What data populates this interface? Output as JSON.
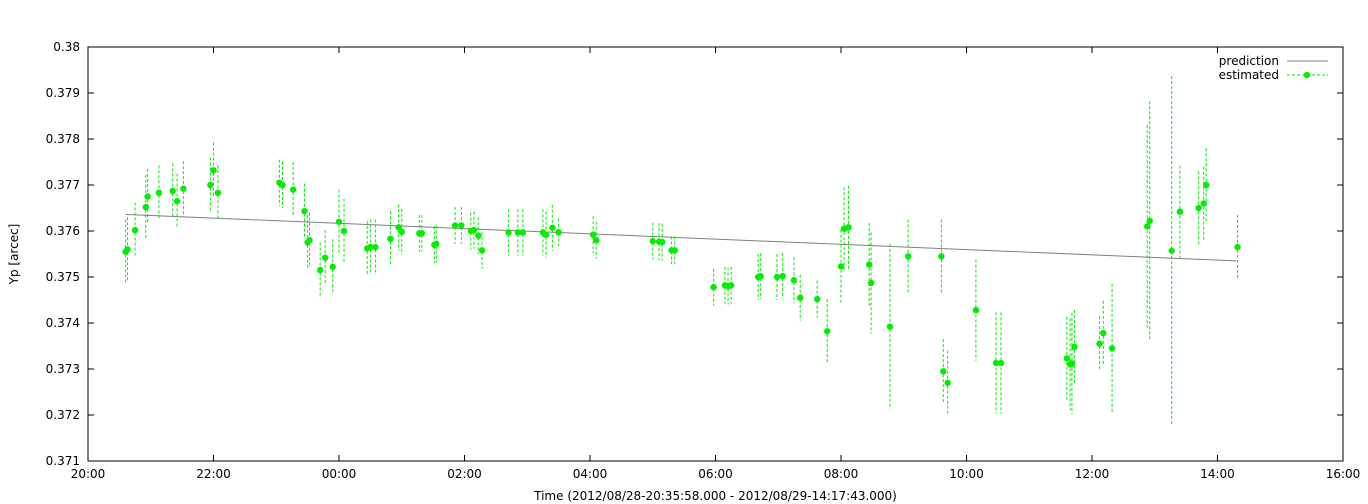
{
  "chart_data": {
    "type": "scatter",
    "title": "",
    "xlabel": "Time (2012/08/28-20:35:58.000 - 2012/08/29-14:17:43.000)",
    "ylabel": "Yp [arcec]",
    "x_unit": "hours",
    "xlim": [
      20,
      40
    ],
    "ylim": [
      0.371,
      0.38
    ],
    "x_ticks": [
      {
        "value": 20,
        "label": "20:00"
      },
      {
        "value": 22,
        "label": "22:00"
      },
      {
        "value": 24,
        "label": "00:00"
      },
      {
        "value": 26,
        "label": "02:00"
      },
      {
        "value": 28,
        "label": "04:00"
      },
      {
        "value": 30,
        "label": "06:00"
      },
      {
        "value": 32,
        "label": "08:00"
      },
      {
        "value": 34,
        "label": "10:00"
      },
      {
        "value": 36,
        "label": "12:00"
      },
      {
        "value": 38,
        "label": "14:00"
      },
      {
        "value": 40,
        "label": "16:00"
      }
    ],
    "y_ticks": [
      {
        "value": 0.371,
        "label": "0.371"
      },
      {
        "value": 0.372,
        "label": "0.372"
      },
      {
        "value": 0.373,
        "label": "0.373"
      },
      {
        "value": 0.374,
        "label": "0.374"
      },
      {
        "value": 0.375,
        "label": "0.375"
      },
      {
        "value": 0.376,
        "label": "0.376"
      },
      {
        "value": 0.377,
        "label": "0.377"
      },
      {
        "value": 0.378,
        "label": "0.378"
      },
      {
        "value": 0.379,
        "label": "0.379"
      },
      {
        "value": 0.38,
        "label": "0.38"
      }
    ],
    "grid": false,
    "legend_position": "top-right",
    "series": [
      {
        "name": "prediction",
        "kind": "line",
        "color": "#7f7f7f",
        "points": [
          [
            20.6,
            0.37636
          ],
          [
            38.3,
            0.37535
          ]
        ]
      },
      {
        "name": "estimated",
        "kind": "points-with-errorbars",
        "color": "#00ee00",
        "errorbar_color": "#00ee00",
        "points": [
          [
            20.6,
            0.37555,
            0.0007
          ],
          [
            20.63,
            0.3756,
            0.0007
          ],
          [
            20.75,
            0.37602,
            0.0006
          ],
          [
            20.92,
            0.37652,
            0.0007
          ],
          [
            20.95,
            0.37675,
            0.0006
          ],
          [
            21.13,
            0.37683,
            0.0006
          ],
          [
            21.35,
            0.37687,
            0.0006
          ],
          [
            21.42,
            0.37665,
            0.0006
          ],
          [
            21.52,
            0.37692,
            0.0006
          ],
          [
            21.95,
            0.377,
            0.0006
          ],
          [
            22.0,
            0.37732,
            0.0006
          ],
          [
            22.07,
            0.37683,
            0.0006
          ],
          [
            23.05,
            0.37705,
            0.0005
          ],
          [
            23.1,
            0.377,
            0.0005
          ],
          [
            23.27,
            0.3769,
            0.0006
          ],
          [
            23.45,
            0.37643,
            0.0006
          ],
          [
            23.5,
            0.37575,
            0.0006
          ],
          [
            23.53,
            0.3758,
            0.0006
          ],
          [
            24.0,
            0.3762,
            0.0007
          ],
          [
            24.08,
            0.376,
            0.0007
          ],
          [
            23.7,
            0.37515,
            0.0006
          ],
          [
            23.78,
            0.37542,
            0.0006
          ],
          [
            23.9,
            0.37522,
            0.0006
          ],
          [
            24.45,
            0.37562,
            0.0006
          ],
          [
            24.5,
            0.37565,
            0.0006
          ],
          [
            24.58,
            0.37565,
            0.0006
          ],
          [
            24.82,
            0.37583,
            0.0006
          ],
          [
            24.95,
            0.37608,
            0.0005
          ],
          [
            25.0,
            0.37598,
            0.0005
          ],
          [
            25.28,
            0.37595,
            0.0004
          ],
          [
            25.32,
            0.37595,
            0.0004
          ],
          [
            25.52,
            0.3757,
            0.0004
          ],
          [
            25.55,
            0.37572,
            0.0004
          ],
          [
            25.85,
            0.37612,
            0.0004
          ],
          [
            25.95,
            0.37612,
            0.0004
          ],
          [
            26.1,
            0.376,
            0.0004
          ],
          [
            26.15,
            0.37602,
            0.0004
          ],
          [
            26.22,
            0.3759,
            0.0004
          ],
          [
            26.28,
            0.37558,
            0.0004
          ],
          [
            26.7,
            0.37597,
            0.0005
          ],
          [
            26.85,
            0.37597,
            0.0005
          ],
          [
            26.93,
            0.37597,
            0.0005
          ],
          [
            27.25,
            0.37597,
            0.0005
          ],
          [
            27.3,
            0.37592,
            0.0005
          ],
          [
            27.4,
            0.37607,
            0.0005
          ],
          [
            27.5,
            0.37597,
            0.0003
          ],
          [
            28.05,
            0.37592,
            0.0004
          ],
          [
            28.1,
            0.3758,
            0.0004
          ],
          [
            29.0,
            0.37578,
            0.0004
          ],
          [
            29.1,
            0.37577,
            0.0004
          ],
          [
            29.15,
            0.37576,
            0.0004
          ],
          [
            29.3,
            0.37558,
            0.0003
          ],
          [
            29.35,
            0.37558,
            0.0003
          ],
          [
            29.97,
            0.37478,
            0.0004
          ],
          [
            30.15,
            0.37482,
            0.0004
          ],
          [
            30.2,
            0.3748,
            0.0004
          ],
          [
            30.25,
            0.37482,
            0.0004
          ],
          [
            30.68,
            0.375,
            0.0005
          ],
          [
            30.72,
            0.37502,
            0.0005
          ],
          [
            30.98,
            0.375,
            0.0005
          ],
          [
            31.07,
            0.37502,
            0.0005
          ],
          [
            31.25,
            0.37493,
            0.0005
          ],
          [
            31.35,
            0.37455,
            0.0005
          ],
          [
            31.62,
            0.37452,
            0.0004
          ],
          [
            31.78,
            0.37382,
            0.0007
          ],
          [
            32.0,
            0.37523,
            0.0008
          ],
          [
            32.05,
            0.37605,
            0.0009
          ],
          [
            32.12,
            0.37608,
            0.0009
          ],
          [
            32.45,
            0.37527,
            0.0009
          ],
          [
            32.48,
            0.37487,
            0.0011
          ],
          [
            32.78,
            0.37392,
            0.0018
          ],
          [
            33.07,
            0.37545,
            0.0008
          ],
          [
            33.6,
            0.37545,
            0.0008
          ],
          [
            33.63,
            0.37295,
            0.0007
          ],
          [
            33.7,
            0.3727,
            0.0007
          ],
          [
            34.15,
            0.37428,
            0.0011
          ],
          [
            34.47,
            0.37313,
            0.0011
          ],
          [
            34.55,
            0.37313,
            0.0011
          ],
          [
            35.6,
            0.37323,
            0.0009
          ],
          [
            35.65,
            0.3731,
            0.001
          ],
          [
            35.68,
            0.37312,
            0.0011
          ],
          [
            35.72,
            0.37348,
            0.0008
          ],
          [
            36.12,
            0.37355,
            0.0006
          ],
          [
            36.18,
            0.37378,
            0.0007
          ],
          [
            36.32,
            0.37345,
            0.0014
          ],
          [
            36.88,
            0.3761,
            0.0022
          ],
          [
            36.92,
            0.37622,
            0.0026
          ],
          [
            37.27,
            0.37557,
            0.0038
          ],
          [
            37.4,
            0.37642,
            0.001
          ],
          [
            37.7,
            0.3765,
            0.0008
          ],
          [
            37.78,
            0.3766,
            0.0008
          ],
          [
            37.82,
            0.377,
            0.0008
          ],
          [
            38.32,
            0.37565,
            0.0007
          ]
        ]
      }
    ]
  }
}
